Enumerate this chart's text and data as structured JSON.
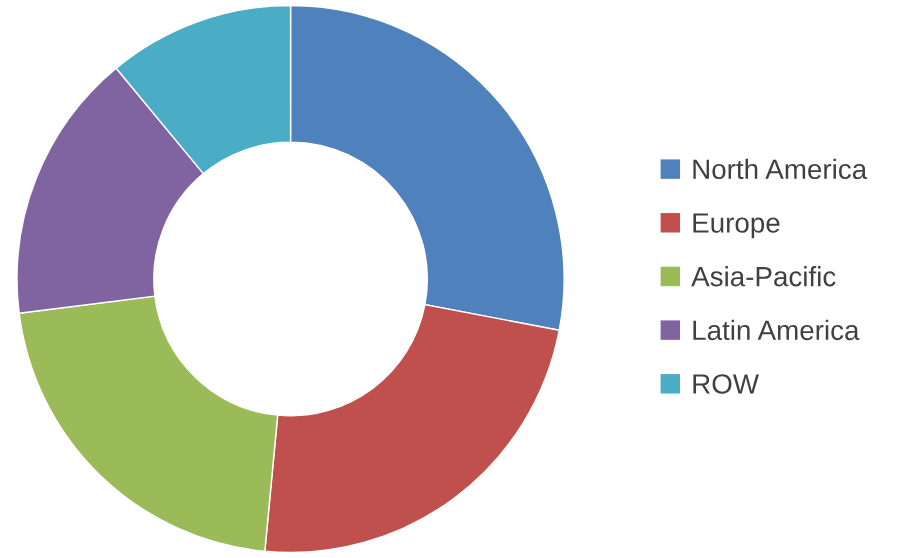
{
  "chart_data": {
    "type": "donut",
    "categories": [
      "North America",
      "Europe",
      "Asia-Pacific",
      "Latin America",
      "ROW"
    ],
    "values": [
      28,
      23.5,
      21.5,
      16,
      11
    ],
    "colors": [
      "#4f81bd",
      "#c0504d",
      "#9bbb59",
      "#8064a2",
      "#4bacc6"
    ],
    "legend": "right"
  }
}
